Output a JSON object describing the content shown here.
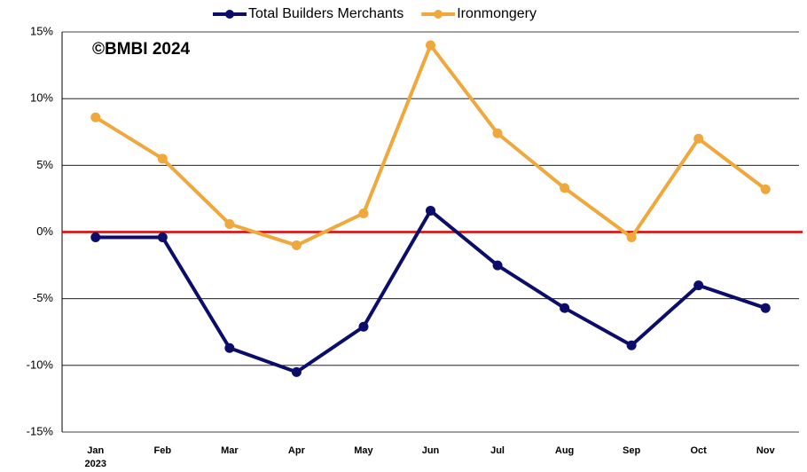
{
  "chart_data": {
    "type": "line",
    "annotation": "©BMBI 2024",
    "categories": [
      "Jan",
      "Feb",
      "Mar",
      "Apr",
      "May",
      "Jun",
      "Jul",
      "Aug",
      "Sep",
      "Oct",
      "Nov"
    ],
    "year_label": "2023",
    "series": [
      {
        "name": "Total Builders Merchants",
        "color": "#0c0c6a",
        "values": [
          -0.4,
          -0.4,
          -8.7,
          -10.5,
          -7.1,
          1.6,
          -2.5,
          -5.7,
          -8.5,
          -4.0,
          -5.7
        ]
      },
      {
        "name": "Ironmongery",
        "color": "#f0a83c",
        "values": [
          8.6,
          5.5,
          0.6,
          -1.0,
          1.4,
          14.0,
          7.4,
          3.3,
          -0.4,
          7.0,
          3.2
        ]
      }
    ],
    "ylim": [
      -15,
      15
    ],
    "yticks": [
      {
        "value": -15,
        "label": "-15%"
      },
      {
        "value": -10,
        "label": "-10%"
      },
      {
        "value": -5,
        "label": "-5%"
      },
      {
        "value": 0,
        "label": "0%"
      },
      {
        "value": 5,
        "label": "5%"
      },
      {
        "value": 10,
        "label": "10%"
      },
      {
        "value": 15,
        "label": "15%"
      }
    ],
    "grid": true,
    "zero_line": {
      "value": 0,
      "color": "#e00000"
    },
    "legend": "top"
  }
}
